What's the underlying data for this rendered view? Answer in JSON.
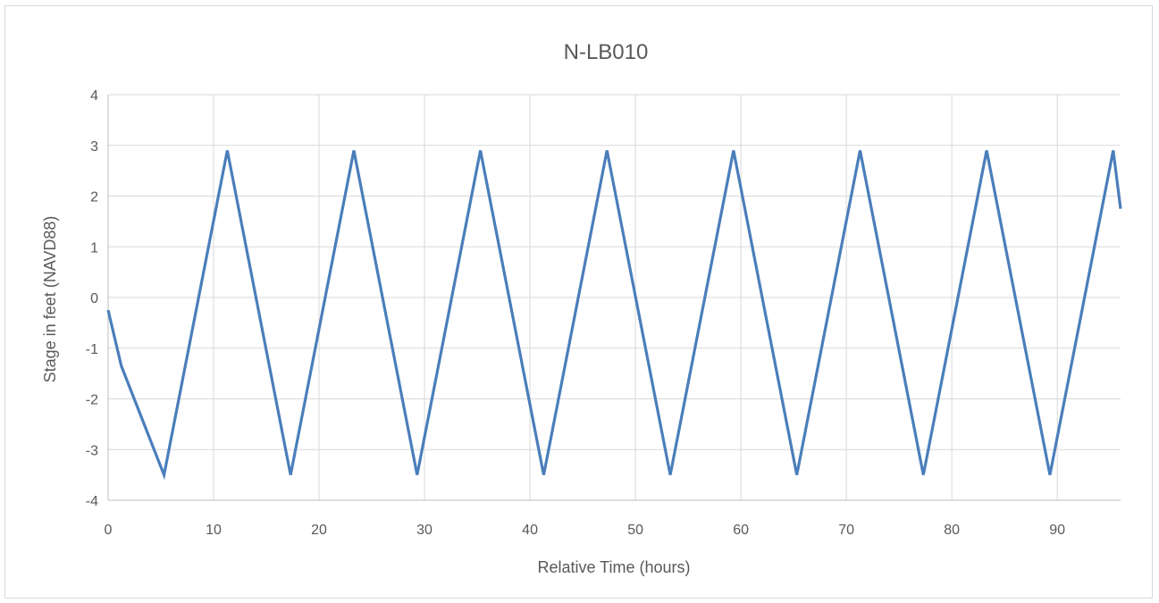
{
  "chart_data": {
    "type": "line",
    "title": "N-LB010",
    "xlabel": "Relative Time (hours)",
    "ylabel": "Stage in feet (NAVD88)",
    "xlim": [
      0,
      96
    ],
    "ylim": [
      -4,
      4
    ],
    "x_ticks": [
      0,
      10,
      20,
      30,
      40,
      50,
      60,
      70,
      80,
      90
    ],
    "y_ticks": [
      -4,
      -3,
      -2,
      -1,
      0,
      1,
      2,
      3,
      4
    ],
    "grid": true,
    "legend": "none",
    "series": [
      {
        "color": "#4a7ebb",
        "x": [
          0,
          1.25,
          5.3,
          11.3,
          17.3,
          23.3,
          29.3,
          35.3,
          41.3,
          47.3,
          53.3,
          59.3,
          65.3,
          71.3,
          77.3,
          83.3,
          89.3,
          95.3,
          96
        ],
        "y": [
          -0.25,
          -1.35,
          -3.5,
          2.9,
          -3.5,
          2.9,
          -3.5,
          2.9,
          -3.5,
          2.9,
          -3.5,
          2.9,
          -3.5,
          2.9,
          -3.5,
          2.9,
          -3.5,
          2.9,
          1.75
        ]
      }
    ]
  }
}
